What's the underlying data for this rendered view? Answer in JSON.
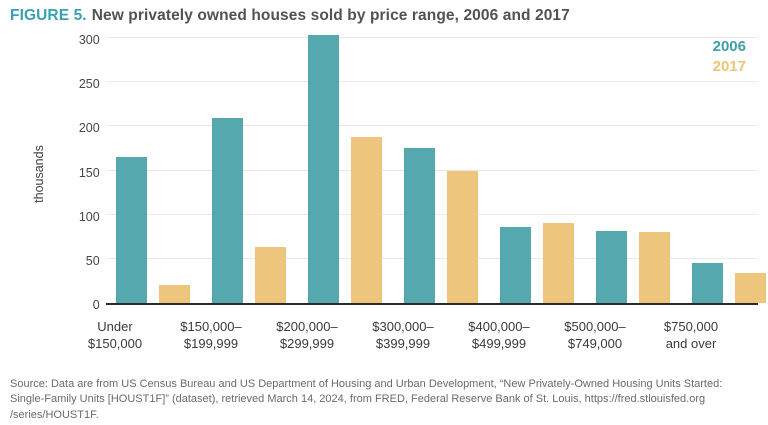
{
  "title": {
    "prefix": "FIGURE 5.",
    "text": "New privately owned houses sold by price range, 2006 and 2017"
  },
  "colors": {
    "accent_teal": "#38A1B2",
    "bar_2006": "#55A8AE",
    "bar_2017": "#EDC57C",
    "legend_2006": "#3E9FA8",
    "legend_2017": "#EFC473",
    "axis_line": "#2B2B2C",
    "gridline": "#E9E9E9"
  },
  "chart_data": {
    "type": "bar",
    "title": "New privately owned houses sold by price range, 2006 and 2017",
    "xlabel": "",
    "ylabel": "thousands",
    "ylim": [
      0,
      300
    ],
    "yticks": [
      0,
      50,
      100,
      150,
      200,
      250,
      300
    ],
    "grid": true,
    "legend_position": "top-right",
    "categories": [
      "Under $150,000",
      "$150,000–$199,999",
      "$200,000–$299,999",
      "$300,000–$399,999",
      "$400,000–$499,999",
      "$500,000–$749,000",
      "$750,000 and over"
    ],
    "category_lines": [
      [
        "Under",
        "$150,000"
      ],
      [
        "$150,000–",
        "$199,999"
      ],
      [
        "$200,000–",
        "$299,999"
      ],
      [
        "$300,000–",
        "$399,999"
      ],
      [
        "$400,000–",
        "$499,999"
      ],
      [
        "$500,000–",
        "$749,000"
      ],
      [
        "$750,000",
        "and over"
      ]
    ],
    "series": [
      {
        "name": "2006",
        "color": "#55A8AE",
        "values": [
          165,
          209,
          303,
          176,
          86,
          82,
          45
        ]
      },
      {
        "name": "2017",
        "color": "#EDC57C",
        "values": [
          20,
          63,
          188,
          150,
          91,
          80,
          34
        ]
      }
    ]
  },
  "source": {
    "lines": [
      "Source: Data are from US Census Bureau and US Department of Housing and Urban Development, “New Privately-Owned Housing Units Started:",
      "Single-Family Units [HOUST1F]” (dataset), retrieved March 14, 2024, from FRED, Federal Reserve Bank of St. Louis, https://fred.stlouisfed.org",
      "/series/HOUST1F."
    ]
  }
}
